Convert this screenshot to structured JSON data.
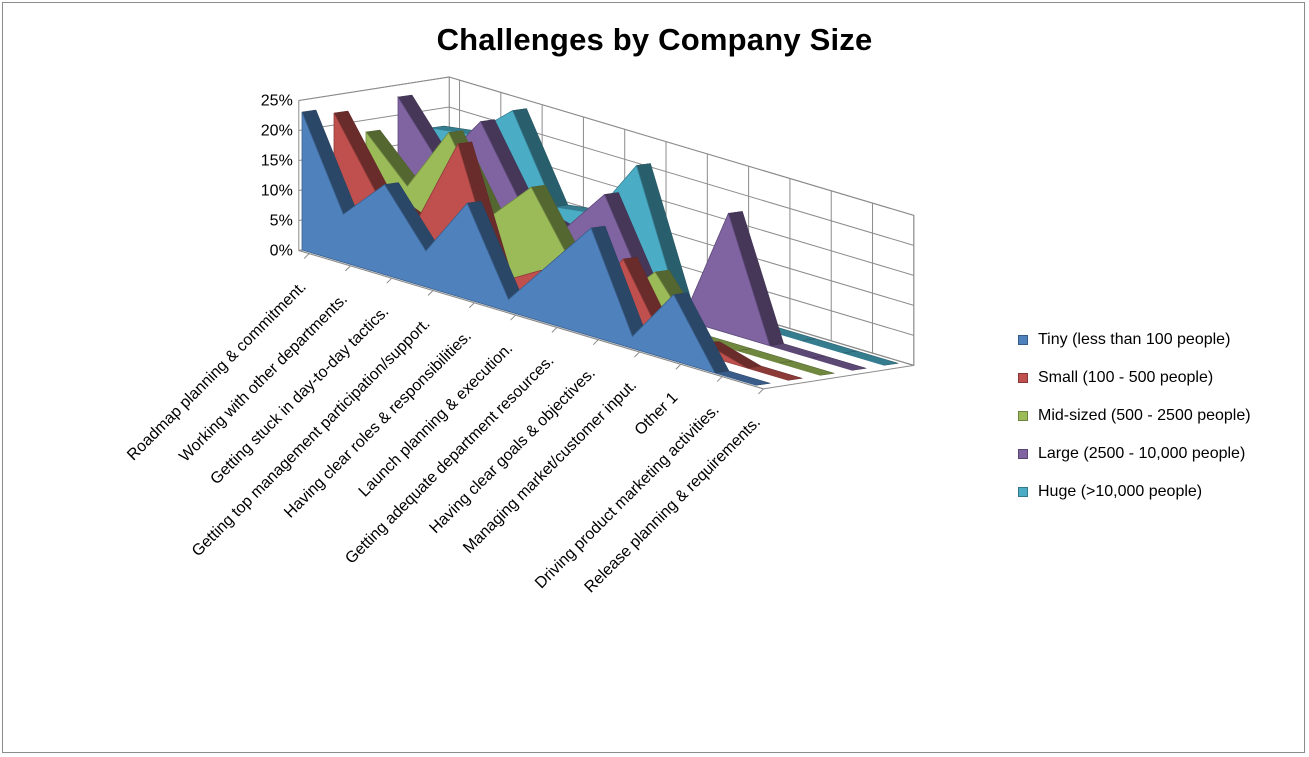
{
  "chart_data": {
    "type": "area",
    "subtype": "3d-area",
    "title": "Challenges by Company Size",
    "xlabel": "",
    "ylabel": "",
    "ylim": [
      0,
      25
    ],
    "y_ticks": [
      "0%",
      "5%",
      "10%",
      "15%",
      "20%",
      "25%"
    ],
    "y_unit": "%",
    "grid": true,
    "legend_position": "right",
    "categories": [
      "Roadmap planning & commitment.",
      "Working with other departments.",
      "Getting stuck in day-to-day tactics.",
      "Getting top management participation/support.",
      "Having clear roles & responsibilities.",
      "Launch planning & execution.",
      "Getting adequate department resources.",
      "Having clear goals & objectives.",
      "Managing market/customer input.",
      "Other 1",
      "Driving product marketing activities.",
      "Release planning & requirements."
    ],
    "series": [
      {
        "name": "Tiny (less than 100 people)",
        "color": "#4F81BD",
        "values": [
          23,
          8,
          15,
          6,
          16,
          2,
          10,
          18,
          2,
          11,
          0,
          0
        ]
      },
      {
        "name": "Small (100 - 500 people)",
        "color": "#C0504D",
        "values": [
          22,
          11,
          8,
          23,
          2,
          6,
          2,
          12,
          0,
          2,
          0,
          0
        ]
      },
      {
        "name": "Mid-sized (500 - 2500 people)",
        "color": "#9BBB59",
        "values": [
          18,
          11,
          22,
          10,
          17,
          6,
          2,
          9,
          0,
          0,
          0,
          0
        ]
      },
      {
        "name": "Large (2500 - 10,000 people)",
        "color": "#8064A2",
        "values": [
          23,
          14,
          23,
          11,
          9,
          17,
          3,
          2,
          20,
          0,
          0,
          0
        ]
      },
      {
        "name": "Huge (>10,000 people)",
        "color": "#4BACC6",
        "values": [
          17,
          18,
          24,
          10,
          11,
          21,
          0,
          0,
          0,
          0,
          0,
          0
        ]
      }
    ]
  }
}
